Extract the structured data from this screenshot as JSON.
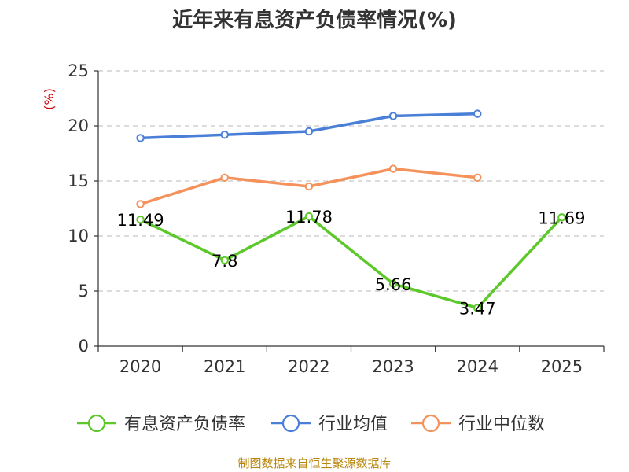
{
  "chart_data": {
    "type": "line",
    "title": "近年来有息资产负债率情况(%)",
    "ylabel": "(%)",
    "xlabel": "",
    "categories": [
      "2020",
      "2021",
      "2022",
      "2023",
      "2024",
      "2025"
    ],
    "ylim": [
      0,
      25
    ],
    "yticks": [
      0,
      5,
      10,
      15,
      20,
      25
    ],
    "grid": true,
    "legend_position": "bottom",
    "series": [
      {
        "name": "有息资产负债率",
        "color": "#5cc82a",
        "values": [
          11.49,
          7.8,
          11.78,
          5.66,
          3.47,
          11.69
        ],
        "labels": [
          "11.49",
          "7.8",
          "11.78",
          "5.66",
          "3.47",
          "11.69"
        ]
      },
      {
        "name": "行业均值",
        "color": "#4a7fd8",
        "values": [
          18.9,
          19.2,
          19.5,
          20.9,
          21.1,
          null
        ]
      },
      {
        "name": "行业中位数",
        "color": "#f5915a",
        "values": [
          12.9,
          15.3,
          14.5,
          16.1,
          15.3,
          null
        ]
      }
    ]
  },
  "footer": {
    "source": "制图数据来自恒生聚源数据库"
  }
}
